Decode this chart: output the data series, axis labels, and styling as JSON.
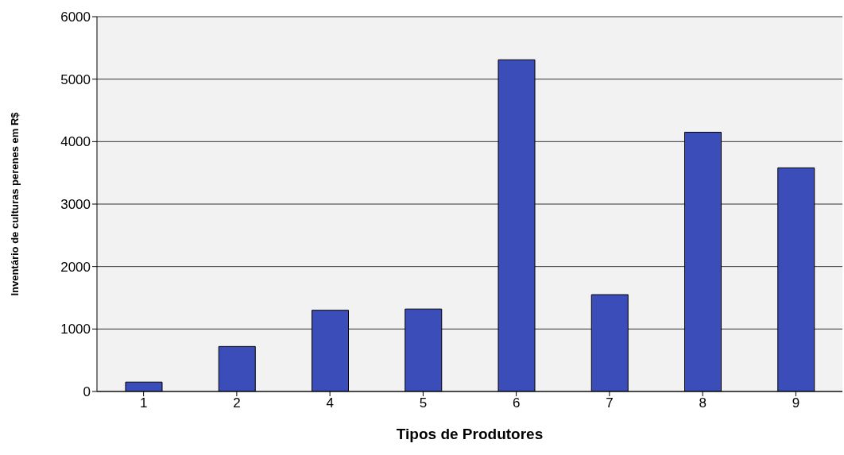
{
  "chart_data": {
    "type": "bar",
    "xlabel": "Tipos de Produtores",
    "ylabel": "Inventário de culturas perenes em R$",
    "categories": [
      "1",
      "2",
      "4",
      "5",
      "6",
      "7",
      "8",
      "9"
    ],
    "values": [
      150,
      720,
      1300,
      1320,
      5310,
      1550,
      4150,
      3580
    ],
    "color": "#3a4db8",
    "ylim": [
      0,
      6000
    ],
    "yticks": [
      0,
      1000,
      2000,
      3000,
      4000,
      5000,
      6000
    ],
    "grid": "y"
  }
}
